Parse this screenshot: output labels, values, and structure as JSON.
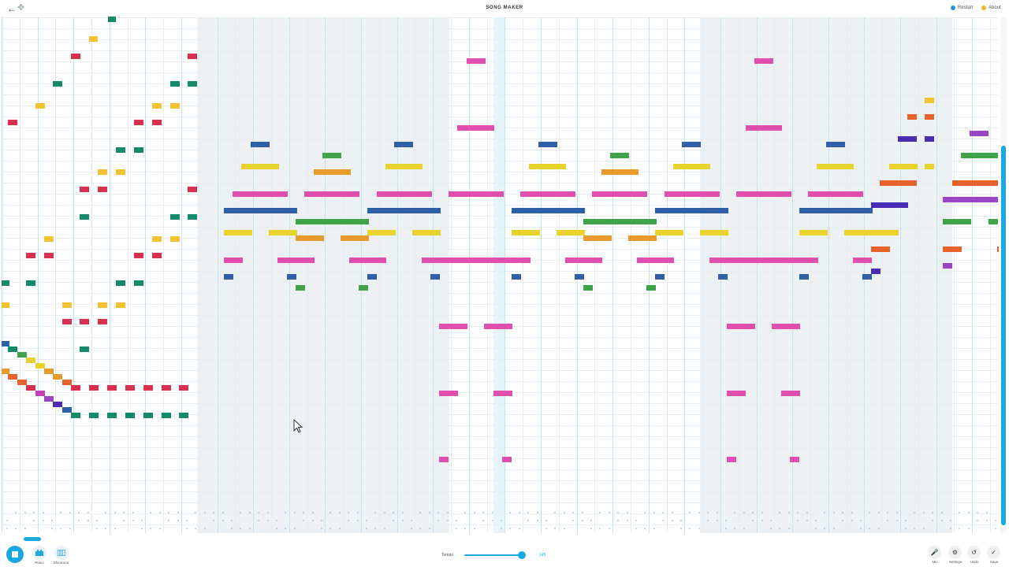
{
  "header": {
    "title": "SONG MAKER",
    "restart_label": "Restart",
    "about_label": "About",
    "back_icon": "arrow-left-icon",
    "move_icon": "move-icon",
    "restart_color": "#2a8fd6",
    "about_color": "#f2b52e"
  },
  "toolbar": {
    "instrument1_label": "Piano",
    "instrument2_label": "Electronic",
    "tempo_label": "Tempo",
    "tempo_value": "145",
    "tempo_fraction": 0.93,
    "mic_label": "Mic",
    "settings_label": "Settings",
    "undo_label": "Undo",
    "save_label": "Save",
    "play_state": "stop-icon"
  },
  "colors": {
    "accent": "#1ba8e0",
    "red": "#d9304f",
    "orange": "#e8632b",
    "amber": "#e89a2c",
    "yellow": "#e8d22c",
    "lightyellow": "#f2c232",
    "green": "#3fa34a",
    "teal": "#138a6a",
    "blue": "#2f5fa7",
    "indigo": "#4a2bb5",
    "purple": "#9a45c4",
    "pink": "#e04fae",
    "magenta": "#c53fb9"
  }
}
